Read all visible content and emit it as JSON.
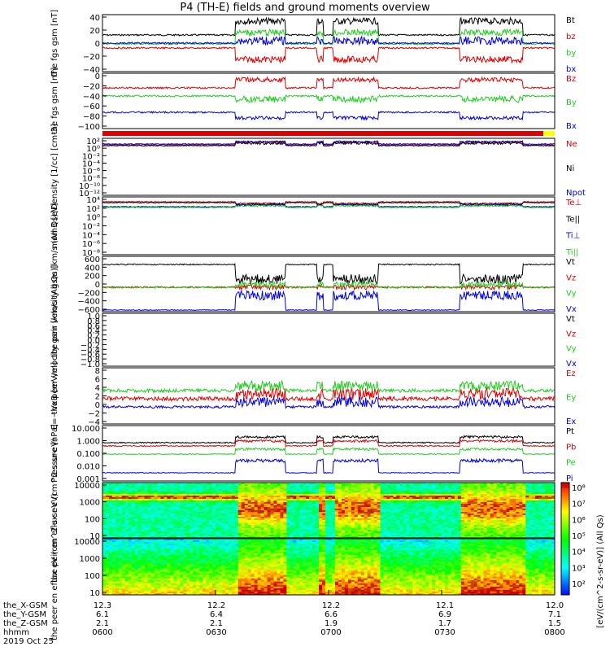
{
  "title": "P4 (TH-E) fields and ground moments overview",
  "date": "2019 Oct 25",
  "orbit_labels": [
    "the_X-GSM",
    "the_Y-GSM",
    "the_Z-GSM",
    "hhmm"
  ],
  "time_ticks": [
    {
      "x": "12.3",
      "y": "6.1",
      "z": "2.1",
      "t": "0600"
    },
    {
      "x": "12.2",
      "y": "6.4",
      "z": "2.1",
      "t": "0630"
    },
    {
      "x": "12.2",
      "y": "6.6",
      "z": "1.9",
      "t": "0700"
    },
    {
      "x": "12.1",
      "y": "6.9",
      "z": "1.7",
      "t": "0730"
    },
    {
      "x": "12.0",
      "y": "7.1",
      "z": "1.5",
      "t": "0800"
    }
  ],
  "colors": {
    "black": "#000000",
    "red": "#e00000",
    "green": "#22cc22",
    "blue": "#0000dd",
    "yellow": "#ffff00"
  },
  "spec_colorbar": {
    "ticks": [
      "10⁸",
      "10⁷",
      "10⁶",
      "10⁵",
      "10⁴",
      "10³",
      "10²"
    ],
    "label": "[eV/(cm^2-s-sr-eV)] (All Qs)"
  },
  "chart_data": [
    {
      "type": "line",
      "ylabel": "the fgs gsm [nT]",
      "yticks": [
        "40",
        "20",
        "0",
        "−20",
        "−40"
      ],
      "ylim": [
        -40,
        40
      ],
      "series": [
        {
          "name": "Bt",
          "color": "#000000"
        },
        {
          "name": "bz",
          "color": "#e00000"
        },
        {
          "name": "by",
          "color": "#22cc22"
        },
        {
          "name": "bx",
          "color": "#0000dd"
        }
      ]
    },
    {
      "type": "line",
      "ylabel": "the fgs gsm [nT]",
      "yticks": [
        "0",
        "−20",
        "−40",
        "−60",
        "−80",
        "−100"
      ],
      "ylim": [
        -110,
        5
      ],
      "series": [
        {
          "name": "Bz",
          "color": "#e00000"
        },
        {
          "name": "By",
          "color": "#22cc22"
        },
        {
          "name": "Bx",
          "color": "#0000dd"
        }
      ]
    },
    {
      "type": "line",
      "ylabel": "Density [1/cc] [cm-3]",
      "yticks": [
        "10²",
        "10⁰",
        "10⁻²",
        "10⁻⁴",
        "10⁻⁶",
        "10⁻⁸",
        "10⁻¹⁰",
        "10⁻¹²"
      ],
      "series": [
        {
          "name": "Ne",
          "color": "#e00000"
        },
        {
          "name": "Ni",
          "color": "#000000"
        },
        {
          "name": "Npot",
          "color": "#0000dd"
        }
      ]
    },
    {
      "type": "line",
      "ylabel": "mom3 [eV]",
      "yticks": [
        "10⁴",
        "10²",
        "10⁰",
        "10⁻²",
        "10⁻⁴",
        "10⁻⁶",
        "10⁻⁸"
      ],
      "series": [
        {
          "name": "Te⊥",
          "color": "#e00000"
        },
        {
          "name": "Te||",
          "color": "#000000"
        },
        {
          "name": "Ti⊥",
          "color": "#0000dd"
        },
        {
          "name": "Ti||",
          "color": "#22cc22"
        }
      ]
    },
    {
      "type": "line",
      "ylabel": "the peir velocity gsm [km/s (All Qs)]",
      "yticks": [
        "600",
        "400",
        "200",
        "0",
        "−200",
        "−400",
        "−600"
      ],
      "ylim": [
        -600,
        700
      ],
      "series": [
        {
          "name": "Vt",
          "color": "#000000"
        },
        {
          "name": "Vz",
          "color": "#e00000"
        },
        {
          "name": "Vy",
          "color": "#22cc22"
        },
        {
          "name": "Vx",
          "color": "#0000dd"
        }
      ]
    },
    {
      "type": "line",
      "ylabel": "the peer velocity gsm [km/s (All Qs)]",
      "yticks": [
        "1.0",
        "0.8",
        "0.6",
        "0.4",
        "0.2",
        "0.0",
        "−0.2",
        "−0.4",
        "−0.6",
        "−0.8",
        "−1.0"
      ],
      "ylim": [
        -1,
        1
      ],
      "series": [
        {
          "name": "Vt",
          "color": "#000000"
        },
        {
          "name": "Vz",
          "color": "#e00000"
        },
        {
          "name": "Vy",
          "color": "#22cc22"
        },
        {
          "name": "Vx",
          "color": "#0000dd"
        }
      ]
    },
    {
      "type": "line",
      "ylabel": "E=−VxB [mV/m]",
      "yticks": [
        "8",
        "6",
        "4",
        "2",
        "0",
        "−2",
        "−4"
      ],
      "ylim": [
        -4,
        8
      ],
      "series": [
        {
          "name": "Ez",
          "color": "#e00000"
        },
        {
          "name": "Ey",
          "color": "#22cc22"
        },
        {
          "name": "Ex",
          "color": "#0000dd"
        }
      ]
    },
    {
      "type": "line",
      "ylabel": "Pressure [nPa]",
      "yticks": [
        "10.000",
        "1.000",
        "0.100",
        "0.010",
        "0.001"
      ],
      "ylim": [
        0.0001,
        10
      ],
      "series": [
        {
          "name": "Pt",
          "color": "#000000"
        },
        {
          "name": "Pb",
          "color": "#e00000"
        },
        {
          "name": "Pe",
          "color": "#22cc22"
        },
        {
          "name": "Pi",
          "color": "#0000dd"
        }
      ]
    },
    {
      "type": "heatmap",
      "ylabel": "the peir en eflux eV (cm^2-s-sr-eV)",
      "yticks": [
        "10000",
        "1000",
        "100",
        "10"
      ]
    },
    {
      "type": "heatmap",
      "ylabel": "the peer en eflux eV (cm^2-s-sr-eV)",
      "yticks": [
        "10000",
        "1000",
        "100",
        "10"
      ]
    }
  ]
}
